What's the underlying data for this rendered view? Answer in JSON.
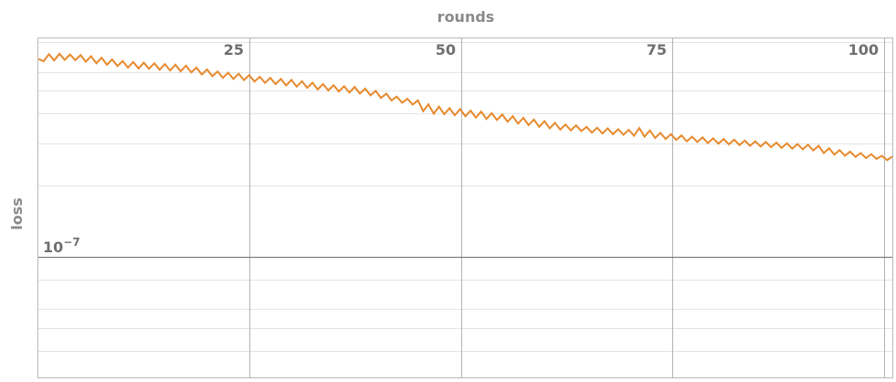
{
  "chart_data": {
    "type": "line",
    "xlabel": "rounds",
    "ylabel": "loss",
    "xlim": [
      0,
      101
    ],
    "x_ticks": [
      25,
      50,
      75,
      100
    ],
    "y_scale": "log",
    "ylim": [
      3.1e-08,
      8.3e-07
    ],
    "y_tick_labels": [
      {
        "value": 1e-07,
        "text": "10−7"
      }
    ],
    "y_minor_ticks": [
      4e-08,
      5e-08,
      6e-08,
      8e-08,
      2e-07,
      3e-07,
      4e-07,
      5e-07,
      6e-07,
      8e-07
    ],
    "grid": true,
    "color": "#e68a2e",
    "series": [
      {
        "values": [
          6.8e-07,
          6.65e-07,
          7.12e-07,
          6.7e-07,
          7.15e-07,
          6.74e-07,
          7.1e-07,
          6.72e-07,
          7.06e-07,
          6.62e-07,
          6.98e-07,
          6.52e-07,
          6.88e-07,
          6.43e-07,
          6.77e-07,
          6.35e-07,
          6.66e-07,
          6.25e-07,
          6.6e-07,
          6.2e-07,
          6.56e-07,
          6.18e-07,
          6.52e-07,
          6.13e-07,
          6.47e-07,
          6.08e-07,
          6.43e-07,
          6.03e-07,
          6.37e-07,
          5.97e-07,
          6.25e-07,
          5.85e-07,
          6.14e-07,
          5.75e-07,
          6.02e-07,
          5.66e-07,
          5.95e-07,
          5.6e-07,
          5.89e-07,
          5.54e-07,
          5.81e-07,
          5.46e-07,
          5.72e-07,
          5.39e-07,
          5.66e-07,
          5.33e-07,
          5.6e-07,
          5.26e-07,
          5.55e-07,
          5.2e-07,
          5.48e-07,
          5.14e-07,
          5.4e-07,
          5.06e-07,
          5.33e-07,
          5.01e-07,
          5.27e-07,
          4.96e-07,
          5.22e-07,
          4.91e-07,
          5.18e-07,
          4.86e-07,
          5.1e-07,
          4.78e-07,
          4.99e-07,
          4.66e-07,
          4.86e-07,
          4.55e-07,
          4.72e-07,
          4.45e-07,
          4.62e-07,
          4.37e-07,
          4.55e-07,
          4.1e-07,
          4.38e-07,
          4e-07,
          4.28e-07,
          3.98e-07,
          4.22e-07,
          3.94e-07,
          4.18e-07,
          3.9e-07,
          4.12e-07,
          3.85e-07,
          4.08e-07,
          3.8e-07,
          4.02e-07,
          3.76e-07,
          3.97e-07,
          3.7e-07,
          3.9e-07,
          3.63e-07,
          3.84e-07,
          3.58e-07,
          3.78e-07,
          3.52e-07,
          3.72e-07,
          3.47e-07,
          3.66e-07,
          3.43e-07,
          3.6e-07,
          3.4e-07,
          3.57e-07,
          3.38e-07,
          3.52e-07,
          3.33e-07,
          3.49e-07,
          3.3e-07,
          3.47e-07,
          3.28e-07,
          3.44e-07,
          3.26e-07,
          3.42e-07,
          3.23e-07,
          3.48e-07,
          3.2e-07,
          3.4e-07,
          3.16e-07,
          3.32e-07,
          3.13e-07,
          3.28e-07,
          3.1e-07,
          3.24e-07,
          3.06e-07,
          3.2e-07,
          3.04e-07,
          3.18e-07,
          3.01e-07,
          3.15e-07,
          2.99e-07,
          3.13e-07,
          2.97e-07,
          3.11e-07,
          2.95e-07,
          3.08e-07,
          2.93e-07,
          3.06e-07,
          2.91e-07,
          3.04e-07,
          2.89e-07,
          3.02e-07,
          2.87e-07,
          3e-07,
          2.85e-07,
          2.98e-07,
          2.83e-07,
          2.96e-07,
          2.8e-07,
          2.93e-07,
          2.73e-07,
          2.86e-07,
          2.69e-07,
          2.81e-07,
          2.66e-07,
          2.77e-07,
          2.63e-07,
          2.73e-07,
          2.6e-07,
          2.7e-07,
          2.58e-07,
          2.66e-07,
          2.55e-07,
          2.64e-07
        ]
      }
    ]
  }
}
